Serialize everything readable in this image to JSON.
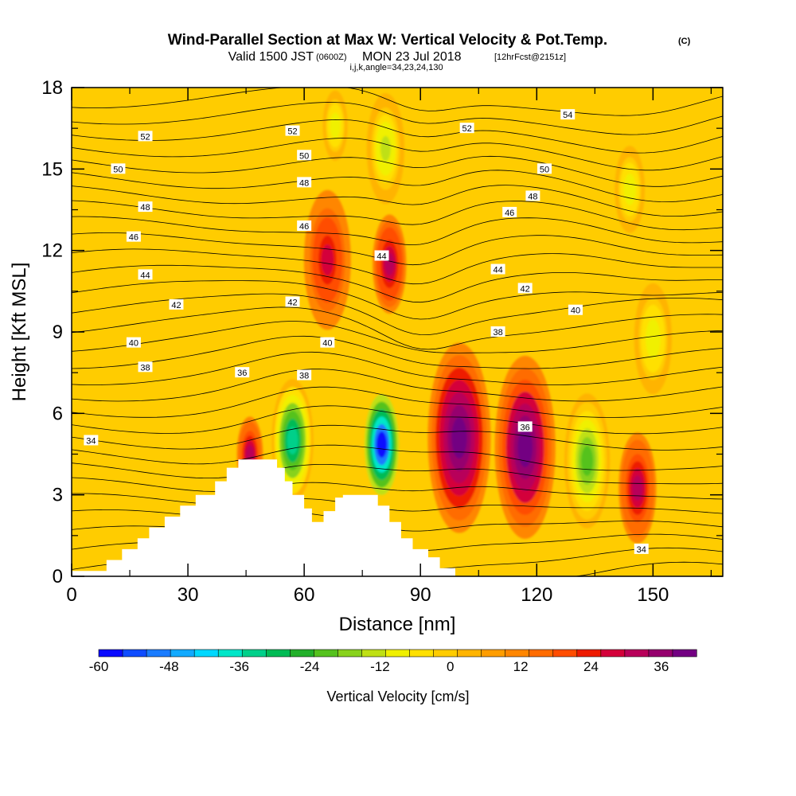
{
  "header": {
    "title": "Wind-Parallel Section at Max W: Vertical Velocity & Pot.Temp.",
    "title_mark": "(C)",
    "valid_prefix": "Valid 1500 JST",
    "valid_z": "(0600Z)",
    "valid_date": "MON 23 Jul 2018",
    "valid_fcst": "[12hrFcst@2151z]",
    "info": "i,j,k,angle=34,23,24,130"
  },
  "chart_data": {
    "type": "heatmap",
    "xlabel": "Distance [nm]",
    "ylabel": "Height [Kft MSL]",
    "xlim": [
      0,
      168
    ],
    "ylim": [
      0,
      18
    ],
    "xticks": [
      "0",
      "30",
      "60",
      "90",
      "120",
      "150"
    ],
    "yticks": [
      "0",
      "3",
      "6",
      "9",
      "12",
      "15",
      "18"
    ],
    "grid": false,
    "colorbar": {
      "label": "Vertical Velocity [cm/s]",
      "tick_labels": [
        "-60",
        "-48",
        "-36",
        "-24",
        "-12",
        "0",
        "12",
        "24",
        "36"
      ],
      "range": [
        -60,
        42
      ],
      "step": 4,
      "colors": [
        "#0a0aff",
        "#0f4cff",
        "#1a7cff",
        "#12aaff",
        "#00d8ff",
        "#00e6c8",
        "#00d08a",
        "#00bb55",
        "#22b02a",
        "#55c21e",
        "#88d21c",
        "#bfe014",
        "#f0f000",
        "#ffe000",
        "#ffcc00",
        "#ffb400",
        "#ff9d00",
        "#ff8600",
        "#ff6c00",
        "#ff4d00",
        "#ee1b00",
        "#d4003a",
        "#b8005a",
        "#96006e",
        "#730082"
      ]
    },
    "pot_temp_contour_labels": [
      "34",
      "34",
      "36",
      "36",
      "38",
      "38",
      "38",
      "40",
      "40",
      "40",
      "42",
      "42",
      "42",
      "44",
      "44",
      "44",
      "46",
      "46",
      "46",
      "48",
      "48",
      "48",
      "50",
      "50",
      "50",
      "52",
      "52",
      "52",
      "54"
    ],
    "w_features": [
      {
        "x": 46,
        "zbot": 3.0,
        "ztop": 6.0,
        "w": 28
      },
      {
        "x": 66,
        "zbot": 8.8,
        "ztop": 14.5,
        "w": 24
      },
      {
        "x": 57,
        "zbot": 2.5,
        "ztop": 7.5,
        "w": -34
      },
      {
        "x": 80,
        "zbot": 2.5,
        "ztop": 7.2,
        "w": -58
      },
      {
        "x": 68,
        "zbot": 15.2,
        "ztop": 18.0,
        "w": -12
      },
      {
        "x": 81,
        "zbot": 13.5,
        "ztop": 18.0,
        "w": -14
      },
      {
        "x": 82,
        "zbot": 9.5,
        "ztop": 13.5,
        "w": 30
      },
      {
        "x": 100,
        "zbot": 1.2,
        "ztop": 9.0,
        "w": 40
      },
      {
        "x": 117,
        "zbot": 1.0,
        "ztop": 8.5,
        "w": 38
      },
      {
        "x": 133,
        "zbot": 1.5,
        "ztop": 7.0,
        "w": -24
      },
      {
        "x": 146,
        "zbot": 1.0,
        "ztop": 5.5,
        "w": 28
      },
      {
        "x": 150,
        "zbot": 6.5,
        "ztop": 11.0,
        "w": -12
      },
      {
        "x": 144,
        "zbot": 12.5,
        "ztop": 16.0,
        "w": -12
      }
    ]
  },
  "colors": {
    "background_w": "#ffcc00",
    "terrain": "#ffffff",
    "contour": "#000000"
  }
}
